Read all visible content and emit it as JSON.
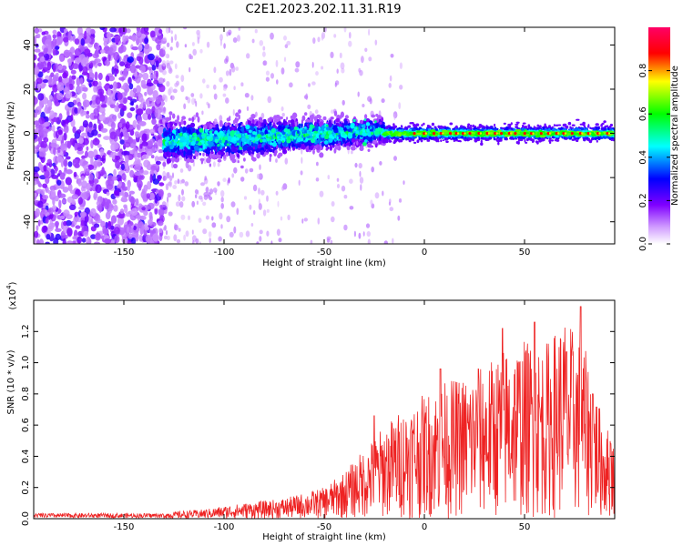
{
  "chart_data": [
    {
      "type": "heatmap",
      "title": "C2E1.2023.202.11.31.R19",
      "xlabel": "Height of straight line (km)",
      "ylabel": "Frequency (Hz)",
      "xlim": [
        -195,
        95
      ],
      "ylim": [
        -50,
        48
      ],
      "xticks": [
        -150,
        -100,
        -50,
        0,
        50
      ],
      "yticks": [
        -40,
        -20,
        0,
        20,
        40
      ],
      "colorbar": {
        "label": "Normalized spectral amplitude",
        "range": [
          0.0,
          1.0
        ],
        "ticks": [
          "0.0",
          "0.2",
          "0.4",
          "0.6",
          "0.8"
        ],
        "colormap": [
          "#ffffff",
          "#7f00ff",
          "#0000ff",
          "#00ffff",
          "#00ff00",
          "#ffff00",
          "#ff0000",
          "#ff0066"
        ]
      },
      "bands": [
        {
          "x_range": [
            -195,
            -130
          ],
          "description_level": "scattered noise",
          "center_freq": 0,
          "freq_spread": 48,
          "amplitude": 0.15
        },
        {
          "x_range": [
            -130,
            -20
          ],
          "center_freq": [
            -4,
            1
          ],
          "freq_spread": [
            8,
            5
          ],
          "amplitude": 0.45
        },
        {
          "x_range": [
            -20,
            95
          ],
          "center_freq": 0,
          "freq_spread": 3,
          "amplitude": 0.9
        }
      ]
    },
    {
      "type": "line",
      "xlabel": "Height of straight line (km)",
      "ylabel": "SNR (10 * v/v)",
      "scale_label": "(x10",
      "scale_exponent": "4",
      "scale_suffix": ")",
      "xlim": [
        -195,
        95
      ],
      "ylim": [
        0,
        1.4
      ],
      "xticks": [
        -150,
        -100,
        -50,
        0,
        50
      ],
      "yticks": [
        "0.0",
        "0.2",
        "0.4",
        "0.6",
        "0.8",
        "1.0",
        "1.2"
      ],
      "color": "#ee2222",
      "envelope": {
        "x": [
          -195,
          -150,
          -130,
          -110,
          -90,
          -70,
          -50,
          -40,
          -30,
          -20,
          -10,
          0,
          10,
          20,
          30,
          40,
          50,
          60,
          70,
          80,
          90,
          95
        ],
        "y": [
          0.02,
          0.03,
          0.04,
          0.06,
          0.1,
          0.13,
          0.2,
          0.3,
          0.45,
          0.6,
          0.72,
          0.8,
          0.88,
          0.92,
          0.98,
          1.1,
          1.15,
          1.12,
          1.3,
          1.1,
          0.6,
          0.55
        ]
      },
      "peaks": [
        {
          "x": -25,
          "y": 0.66
        },
        {
          "x": 8,
          "y": 0.96
        },
        {
          "x": 27,
          "y": 0.96
        },
        {
          "x": 39,
          "y": 1.22
        },
        {
          "x": 55,
          "y": 1.26
        },
        {
          "x": 71,
          "y": 1.07
        },
        {
          "x": 78,
          "y": 1.36
        },
        {
          "x": 84,
          "y": 0.8
        },
        {
          "x": 93,
          "y": 0.48
        }
      ]
    }
  ]
}
